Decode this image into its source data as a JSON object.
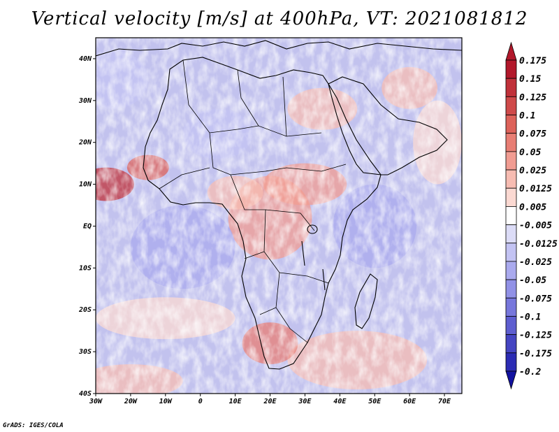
{
  "chart_data": {
    "type": "heatmap",
    "title": "Vertical velocity [m/s] at 400hPa, VT: 2021081812",
    "variable": "Vertical velocity",
    "units": "m/s",
    "level": "400hPa",
    "valid_time": "2021081812",
    "x_axis": {
      "min": -30,
      "max": 75,
      "ticks": [
        -30,
        -20,
        -10,
        0,
        10,
        20,
        30,
        40,
        50,
        60,
        70
      ],
      "tick_labels": [
        "30W",
        "20W",
        "10W",
        "0",
        "10E",
        "20E",
        "30E",
        "40E",
        "50E",
        "60E",
        "70E"
      ]
    },
    "y_axis": {
      "min": -40,
      "max": 45,
      "ticks": [
        40,
        30,
        20,
        10,
        0,
        -10,
        -20,
        -30,
        -40
      ],
      "tick_labels": [
        "40N",
        "30N",
        "20N",
        "10N",
        "EQ",
        "10S",
        "20S",
        "30S",
        "40S"
      ]
    },
    "colorbar": {
      "levels": [
        "0.175",
        "0.15",
        "0.125",
        "0.1",
        "0.075",
        "0.05",
        "0.025",
        "0.0125",
        "0.005",
        "-0.005",
        "-0.0125",
        "-0.025",
        "-0.05",
        "-0.075",
        "-0.1",
        "-0.125",
        "-0.175",
        "-0.2"
      ],
      "colors": [
        "#b2182b",
        "#c0313a",
        "#cf4a4a",
        "#dd625a",
        "#e87e74",
        "#f19c92",
        "#f7bcb2",
        "#fbd9d2",
        "#ffffff",
        "#dcdcf7",
        "#c3c3f3",
        "#aaaaee",
        "#9191e6",
        "#7777dc",
        "#5e5ed0",
        "#4545c2",
        "#2c2cb4",
        "#1212a0"
      ],
      "min_arrow_color": "#1212a0",
      "max_arrow_color": "#b2182b"
    },
    "regions": {
      "ocean_background": "#c2c2ee",
      "positive_zones": [
        "West Africa coast ~10N",
        "Central Africa ~0-10N",
        "Southern Ocean 30-40S"
      ]
    }
  },
  "credit": "GrADS: IGES/COLA"
}
